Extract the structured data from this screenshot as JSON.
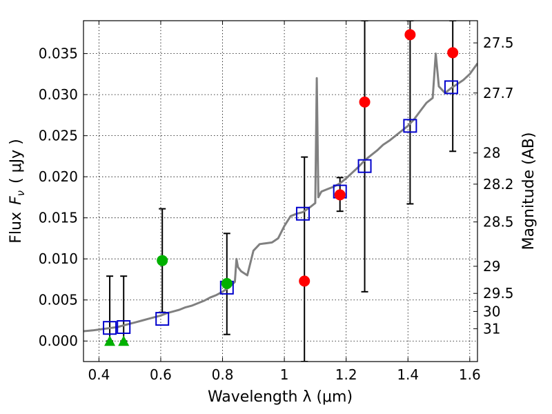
{
  "chart_data": {
    "type": "scatter",
    "xlabel": "Wavelength  λ (μm)",
    "ylabel": "Flux  Fν  ( μJy )",
    "ylabel_parts": {
      "prefix": "Flux",
      "symbol": "F",
      "subscript": "ν",
      "units": "( μJy )"
    },
    "ylabel_right": "Magnitude (AB)",
    "xlim": [
      0.35,
      1.625
    ],
    "ylim": [
      -0.0025,
      0.039
    ],
    "x_ticks": [
      0.4,
      0.6,
      0.8,
      1.0,
      1.2,
      1.4,
      1.6
    ],
    "x_tick_labels": [
      "0.4",
      "0.6",
      "0.8",
      "1",
      "1.2",
      "1.4",
      "1.6"
    ],
    "y_ticks": [
      0.0,
      0.005,
      0.01,
      0.015,
      0.02,
      0.025,
      0.03,
      0.035
    ],
    "y_tick_labels": [
      "0.000",
      "0.005",
      "0.010",
      "0.015",
      "0.020",
      "0.025",
      "0.030",
      "0.035"
    ],
    "right_axis_ticks": [
      {
        "label": "27.5",
        "flux": 0.0363
      },
      {
        "label": "27.7",
        "flux": 0.0302
      },
      {
        "label": "28",
        "flux": 0.0229
      },
      {
        "label": "28.2",
        "flux": 0.0191
      },
      {
        "label": "28.5",
        "flux": 0.0145
      },
      {
        "label": "29",
        "flux": 0.0091
      },
      {
        "label": "29.5",
        "flux": 0.0058
      },
      {
        "label": "30",
        "flux": 0.0036
      },
      {
        "label": "31",
        "flux": 0.0015
      }
    ],
    "grid": true,
    "series": [
      {
        "name": "model spectrum",
        "kind": "line",
        "color": "#808080",
        "points": [
          [
            0.35,
            0.0012
          ],
          [
            0.38,
            0.0013
          ],
          [
            0.4,
            0.0014
          ],
          [
            0.42,
            0.0015
          ],
          [
            0.44,
            0.0016
          ],
          [
            0.46,
            0.0017
          ],
          [
            0.48,
            0.0019
          ],
          [
            0.5,
            0.0021
          ],
          [
            0.52,
            0.0023
          ],
          [
            0.54,
            0.0025
          ],
          [
            0.56,
            0.0027
          ],
          [
            0.58,
            0.0029
          ],
          [
            0.6,
            0.0031
          ],
          [
            0.62,
            0.0034
          ],
          [
            0.64,
            0.0036
          ],
          [
            0.66,
            0.0038
          ],
          [
            0.68,
            0.0041
          ],
          [
            0.7,
            0.0043
          ],
          [
            0.72,
            0.0046
          ],
          [
            0.74,
            0.0049
          ],
          [
            0.76,
            0.0053
          ],
          [
            0.78,
            0.0056
          ],
          [
            0.8,
            0.006
          ],
          [
            0.82,
            0.0065
          ],
          [
            0.84,
            0.0072
          ],
          [
            0.845,
            0.01
          ],
          [
            0.85,
            0.009
          ],
          [
            0.86,
            0.0085
          ],
          [
            0.88,
            0.008
          ],
          [
            0.9,
            0.011
          ],
          [
            0.92,
            0.0118
          ],
          [
            0.94,
            0.0119
          ],
          [
            0.96,
            0.012
          ],
          [
            0.98,
            0.0125
          ],
          [
            1.0,
            0.014
          ],
          [
            1.02,
            0.0152
          ],
          [
            1.04,
            0.0155
          ],
          [
            1.06,
            0.0157
          ],
          [
            1.08,
            0.0162
          ],
          [
            1.1,
            0.0168
          ],
          [
            1.105,
            0.032
          ],
          [
            1.11,
            0.0175
          ],
          [
            1.12,
            0.0182
          ],
          [
            1.14,
            0.0185
          ],
          [
            1.16,
            0.0188
          ],
          [
            1.18,
            0.0192
          ],
          [
            1.2,
            0.0198
          ],
          [
            1.22,
            0.0205
          ],
          [
            1.24,
            0.0212
          ],
          [
            1.26,
            0.022
          ],
          [
            1.28,
            0.0226
          ],
          [
            1.3,
            0.0232
          ],
          [
            1.32,
            0.0239
          ],
          [
            1.34,
            0.0244
          ],
          [
            1.36,
            0.025
          ],
          [
            1.38,
            0.0256
          ],
          [
            1.4,
            0.0262
          ],
          [
            1.42,
            0.027
          ],
          [
            1.44,
            0.028
          ],
          [
            1.46,
            0.029
          ],
          [
            1.48,
            0.0296
          ],
          [
            1.49,
            0.035
          ],
          [
            1.5,
            0.031
          ],
          [
            1.52,
            0.0302
          ],
          [
            1.54,
            0.0308
          ],
          [
            1.56,
            0.0313
          ],
          [
            1.58,
            0.0318
          ],
          [
            1.6,
            0.0325
          ],
          [
            1.625,
            0.0338
          ]
        ]
      },
      {
        "name": "model photometry",
        "kind": "open-square",
        "color": "#0000cc",
        "points": [
          [
            0.435,
            0.0016
          ],
          [
            0.48,
            0.0017
          ],
          [
            0.605,
            0.0027
          ],
          [
            0.814,
            0.0065
          ],
          [
            1.06,
            0.0155
          ],
          [
            1.18,
            0.0182
          ],
          [
            1.26,
            0.0213
          ],
          [
            1.407,
            0.0262
          ],
          [
            1.54,
            0.0309
          ]
        ]
      },
      {
        "name": "measured (red)",
        "kind": "filled-circle",
        "color": "#ff0000",
        "points": [
          [
            1.065,
            0.0073
          ],
          [
            1.18,
            0.0178
          ],
          [
            1.26,
            0.0291
          ],
          [
            1.407,
            0.0373
          ],
          [
            1.545,
            0.0351
          ]
        ]
      },
      {
        "name": "measured (green)",
        "kind": "filled-circle",
        "color": "#00b000",
        "points": [
          [
            0.605,
            0.0098
          ],
          [
            0.814,
            0.007
          ]
        ]
      },
      {
        "name": "upper limits",
        "kind": "triangle",
        "color": "#00b000",
        "points": [
          [
            0.435,
            0.0
          ],
          [
            0.48,
            0.0
          ]
        ]
      }
    ],
    "errorbars": [
      {
        "x": 0.435,
        "low": 0.0,
        "high": 0.0079
      },
      {
        "x": 0.48,
        "low": 0.0,
        "high": 0.0079
      },
      {
        "x": 0.605,
        "low": 0.0035,
        "high": 0.0161
      },
      {
        "x": 0.814,
        "low": 0.0008,
        "high": 0.0131
      },
      {
        "x": 1.065,
        "low": -0.0025,
        "high": 0.0224
      },
      {
        "x": 1.18,
        "low": 0.0158,
        "high": 0.0199
      },
      {
        "x": 1.26,
        "low": 0.006,
        "high": 0.039
      },
      {
        "x": 1.407,
        "low": 0.0167,
        "high": 0.039
      },
      {
        "x": 1.545,
        "low": 0.0231,
        "high": 0.039
      }
    ]
  },
  "colors": {
    "background": "#ffffff",
    "axis": "#000000"
  }
}
